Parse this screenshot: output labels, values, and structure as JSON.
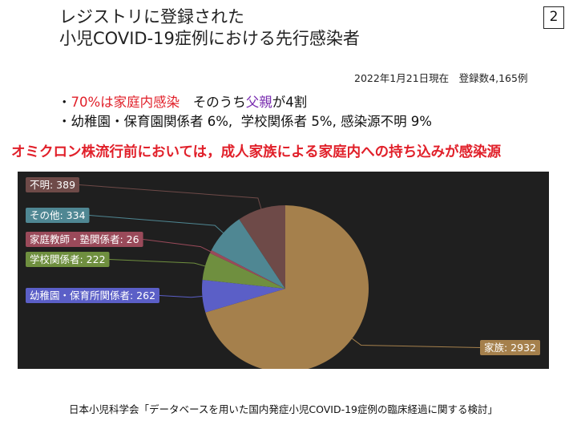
{
  "header": {
    "title_line1": "レジストリに登録された",
    "title_line2": "小児COVID-19症例における先行感染者",
    "page_number": "2",
    "date_line": "2022年1月21日現在　登録数4,165例"
  },
  "bullets": [
    {
      "prefix": "・",
      "highlight": "70%は家庭内感染",
      "mid": "　そのうち",
      "highlight2": "父親",
      "suffix": "が4割"
    },
    {
      "text": "・幼稚園・保育園関係者 6%,  学校関係者 5%, 感染源不明 9%"
    }
  ],
  "headline": "オミクロン株流行前においては，成人家族による家庭内への持ち込みが感染源",
  "footer": "日本小児科学会「データベースを用いた国内発症小児COVID-19症例の臨床経過に関する検討」",
  "colors": {
    "chart_bg": "#1f1f1f",
    "label_text": "#ffffff",
    "accent_red": "#e1202a",
    "accent_purple": "#7a2db0"
  },
  "chart_data": {
    "type": "pie",
    "slices": [
      {
        "label": "家族: 2932",
        "name": "家族",
        "value": 2932,
        "color": "#a5804c"
      },
      {
        "label": "幼稚園・保育所関係者: 262",
        "name": "幼稚園・保育所関係者",
        "value": 262,
        "color": "#5b5fc7"
      },
      {
        "label": "学校関係者: 222",
        "name": "学校関係者",
        "value": 222,
        "color": "#6f8f3f"
      },
      {
        "label": "家庭教師・塾関係者: 26",
        "name": "家庭教師・塾関係者",
        "value": 26,
        "color": "#9a4a5a"
      },
      {
        "label": "その他: 334",
        "name": "その他",
        "value": 334,
        "color": "#4f8793"
      },
      {
        "label": "不明: 389",
        "name": "不明",
        "value": 389,
        "color": "#6e4a48"
      }
    ]
  }
}
